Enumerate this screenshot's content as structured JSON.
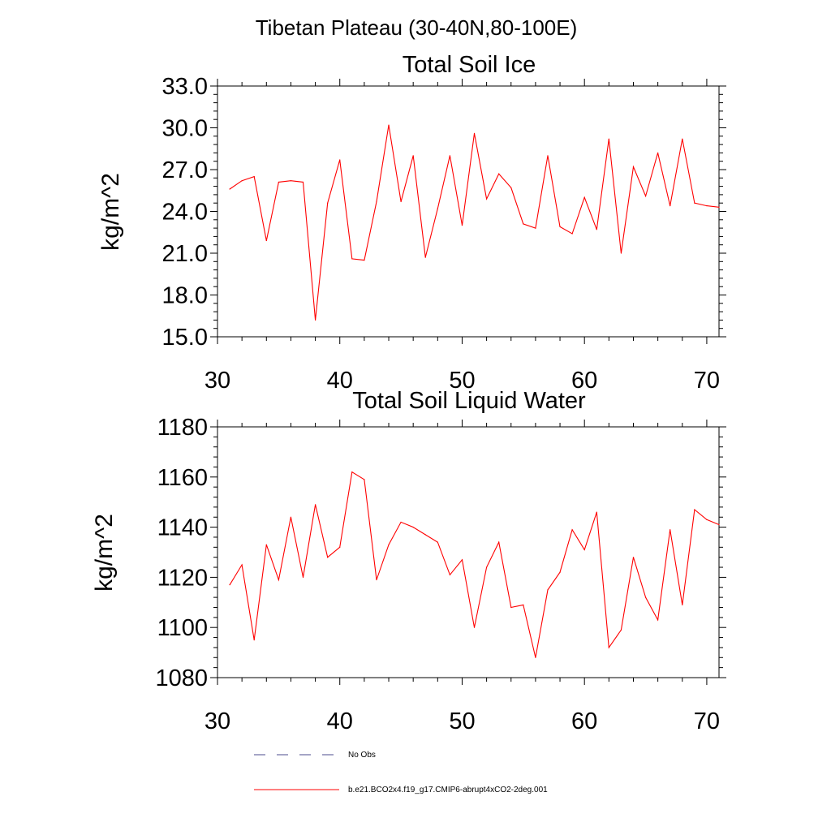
{
  "figure": {
    "suptitle": "Tibetan Plateau (30-40N,80-100E)"
  },
  "chart_data": [
    {
      "type": "line",
      "title": "Total Soil Ice",
      "xlabel": "",
      "ylabel": "kg/m^2",
      "xlim": [
        30,
        71
      ],
      "ylim": [
        15,
        33
      ],
      "xticks": [
        30,
        40,
        50,
        60,
        70
      ],
      "xtick_labels": [
        "30",
        "40",
        "50",
        "60",
        "70"
      ],
      "xminor_step": 2,
      "yticks": [
        15,
        18,
        21,
        24,
        27,
        30,
        33
      ],
      "ytick_labels": [
        "15.0",
        "18.0",
        "21.0",
        "24.0",
        "27.0",
        "30.0",
        "33.0"
      ],
      "yminor_step": 0.6,
      "grid": false,
      "series": [
        {
          "name": "b.e21.BCO2x4.f19_g17.CMIP6-abrupt4xCO2-2deg.001",
          "color": "#ff0000",
          "x": [
            31,
            32,
            33,
            34,
            35,
            36,
            37,
            38,
            39,
            40,
            41,
            42,
            43,
            44,
            45,
            46,
            47,
            48,
            49,
            50,
            51,
            52,
            53,
            54,
            55,
            56,
            57,
            58,
            59,
            60,
            61,
            62,
            63,
            64,
            65,
            66,
            67,
            68,
            69,
            70,
            71
          ],
          "y": [
            25.6,
            26.2,
            26.5,
            21.9,
            26.1,
            26.2,
            26.1,
            16.2,
            24.6,
            27.7,
            20.6,
            20.5,
            24.7,
            30.2,
            24.7,
            28.0,
            20.7,
            24.2,
            28.0,
            23.0,
            29.6,
            24.9,
            26.7,
            25.7,
            23.1,
            22.8,
            28.0,
            22.9,
            22.4,
            25.0,
            22.7,
            29.2,
            21.0,
            27.2,
            25.1,
            28.2,
            24.4,
            29.2,
            24.6,
            24.4,
            24.3
          ]
        }
      ]
    },
    {
      "type": "line",
      "title": "Total Soil Liquid Water",
      "xlabel": "",
      "ylabel": "kg/m^2",
      "xlim": [
        30,
        71
      ],
      "ylim": [
        1080,
        1180
      ],
      "xticks": [
        30,
        40,
        50,
        60,
        70
      ],
      "xtick_labels": [
        "30",
        "40",
        "50",
        "60",
        "70"
      ],
      "xminor_step": 2,
      "yticks": [
        1080,
        1100,
        1120,
        1140,
        1160,
        1180
      ],
      "ytick_labels": [
        "1080",
        "1100",
        "1120",
        "1140",
        "1160",
        "1180"
      ],
      "yminor_step": 4,
      "grid": false,
      "series": [
        {
          "name": "b.e21.BCO2x4.f19_g17.CMIP6-abrupt4xCO2-2deg.001",
          "color": "#ff0000",
          "x": [
            31,
            32,
            33,
            34,
            35,
            36,
            37,
            38,
            39,
            40,
            41,
            42,
            43,
            44,
            45,
            46,
            47,
            48,
            49,
            50,
            51,
            52,
            53,
            54,
            55,
            56,
            57,
            58,
            59,
            60,
            61,
            62,
            63,
            64,
            65,
            66,
            67,
            68,
            69,
            70,
            71
          ],
          "y": [
            1117,
            1125,
            1095,
            1133,
            1119,
            1144,
            1120,
            1149,
            1128,
            1132,
            1162,
            1159,
            1119,
            1133,
            1142,
            1140,
            1137,
            1134,
            1121,
            1127,
            1100,
            1124,
            1134,
            1108,
            1109,
            1088,
            1115,
            1122,
            1139,
            1131,
            1146,
            1092,
            1099,
            1128,
            1112,
            1103,
            1139,
            1109,
            1147,
            1143,
            1141
          ]
        }
      ]
    }
  ],
  "legend": {
    "entries": [
      {
        "label": "No Obs",
        "color": "#4b4b8c",
        "style": "dashed"
      },
      {
        "label": "b.e21.BCO2x4.f19_g17.CMIP6-abrupt4xCO2-2deg.001",
        "color": "#ff0000",
        "style": "solid"
      }
    ]
  }
}
